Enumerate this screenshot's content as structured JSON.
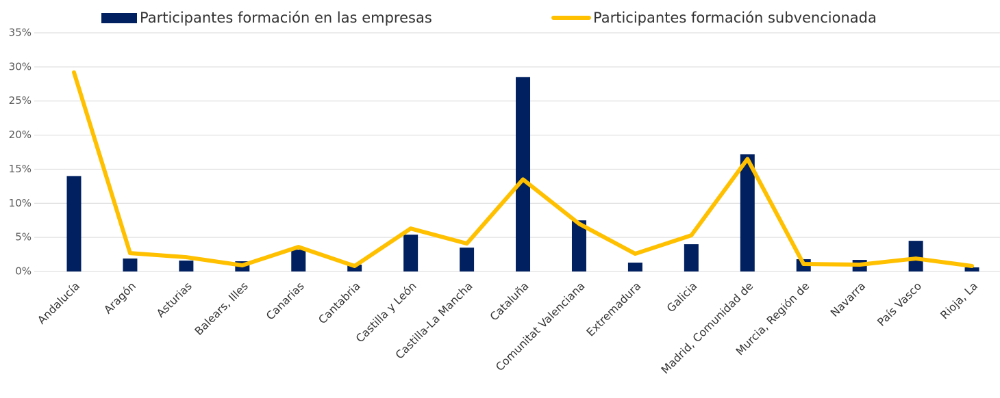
{
  "chart_data": {
    "type": "bar-line",
    "categories": [
      "Andalucía",
      "Aragón",
      "Asturias",
      "Balears, Illes",
      "Canarias",
      "Cantabria",
      "Castilla y León",
      "Castilla-La Mancha",
      "Cataluña",
      "Comunitat Valenciana",
      "Extremadura",
      "Galicia",
      "Madrid, Comunidad de",
      "Murcia, Región de",
      "Navarra",
      "País Vasco",
      "Rioja, La"
    ],
    "series": [
      {
        "name": "Participantes formación en las empresas",
        "type": "bar",
        "color": "#002060",
        "values": [
          14.0,
          1.9,
          1.6,
          1.5,
          3.2,
          1.0,
          5.4,
          3.5,
          28.5,
          7.5,
          1.3,
          4.0,
          17.2,
          1.8,
          1.7,
          4.5,
          0.6
        ]
      },
      {
        "name": "Participantes formación subvencionada",
        "type": "line",
        "color": "#FFC000",
        "values": [
          29.2,
          2.7,
          2.1,
          0.9,
          3.6,
          0.8,
          6.3,
          4.1,
          13.5,
          7.0,
          2.6,
          5.3,
          16.5,
          1.1,
          1.0,
          1.9,
          0.8
        ]
      }
    ],
    "ylim": [
      0,
      35
    ],
    "yticks": [
      {
        "value": 0,
        "label": "0%"
      },
      {
        "value": 5,
        "label": "5%"
      },
      {
        "value": 10,
        "label": "10%"
      },
      {
        "value": 15,
        "label": "15%"
      },
      {
        "value": 20,
        "label": "20%"
      },
      {
        "value": 25,
        "label": "25%"
      },
      {
        "value": 30,
        "label": "30%"
      },
      {
        "value": 35,
        "label": "35%"
      }
    ],
    "grid": true,
    "legend": "top"
  }
}
